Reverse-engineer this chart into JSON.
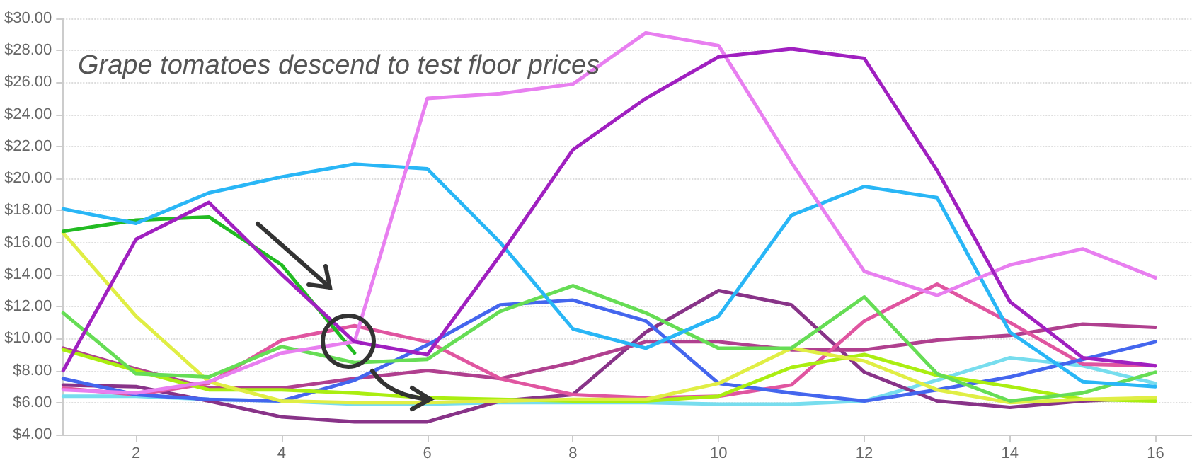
{
  "chart_data": {
    "type": "line",
    "x": [
      1,
      2,
      3,
      4,
      5,
      6,
      7,
      8,
      9,
      10,
      11,
      12,
      13,
      14,
      15,
      16
    ],
    "xlim": [
      1,
      16.5
    ],
    "xticks": [
      2,
      4,
      6,
      8,
      10,
      12,
      14,
      16
    ],
    "ylim": [
      4,
      30
    ],
    "yticks": [
      {
        "value": 4,
        "label": "$4.00"
      },
      {
        "value": 6,
        "label": "$6.00"
      },
      {
        "value": 8,
        "label": "$8.00"
      },
      {
        "value": 10,
        "label": "$10.00"
      },
      {
        "value": 12,
        "label": "$12.00"
      },
      {
        "value": 14,
        "label": "$14.00"
      },
      {
        "value": 16,
        "label": "$16.00"
      },
      {
        "value": 18,
        "label": "$18.00"
      },
      {
        "value": 20,
        "label": "$20.00"
      },
      {
        "value": 22,
        "label": "$22.00"
      },
      {
        "value": 24,
        "label": "$24.00"
      },
      {
        "value": 26,
        "label": "$26.00"
      },
      {
        "value": 28,
        "label": "$28.00"
      },
      {
        "value": 30,
        "label": "$30.00"
      }
    ],
    "grid": "y",
    "marker": "none",
    "line_style": "solid",
    "annotations": [
      "Grape tomatoes descend to test floor prices"
    ],
    "series": [
      {
        "color": "#77ddee",
        "values": [
          6.4,
          6.4,
          6.2,
          6.1,
          5.9,
          5.9,
          6.0,
          6.0,
          6.0,
          5.9,
          5.9,
          6.1,
          7.4,
          8.8,
          8.3,
          7.2
        ]
      },
      {
        "color": "#883388",
        "values": [
          7.1,
          7.0,
          6.1,
          5.1,
          4.8,
          4.8,
          6.1,
          6.5,
          10.4,
          13.0,
          12.1,
          7.9,
          6.1,
          5.7,
          6.1,
          6.3
        ]
      },
      {
        "color": "#b0408f",
        "values": [
          9.4,
          8.1,
          6.9,
          6.9,
          7.5,
          8.0,
          7.5,
          8.5,
          9.8,
          9.8,
          9.3,
          9.3,
          9.9,
          10.2,
          10.9,
          10.7
        ]
      },
      {
        "color": "#e055a0",
        "values": [
          6.9,
          6.5,
          7.2,
          9.9,
          10.8,
          9.8,
          7.5,
          6.5,
          6.3,
          6.4,
          7.1,
          11.1,
          13.4,
          11.0,
          8.4,
          8.3
        ]
      },
      {
        "color": "#4466ee",
        "values": [
          7.5,
          6.5,
          6.2,
          6.1,
          7.4,
          9.6,
          12.1,
          12.4,
          11.1,
          7.2,
          6.6,
          6.1,
          6.8,
          7.6,
          8.7,
          9.8
        ]
      },
      {
        "color": "#aaee11",
        "values": [
          9.3,
          8.0,
          6.8,
          6.8,
          6.6,
          6.3,
          6.2,
          6.1,
          6.1,
          6.4,
          8.2,
          9.0,
          7.7,
          7.0,
          6.2,
          6.1
        ]
      },
      {
        "color": "#e0ee44",
        "values": [
          16.6,
          11.4,
          7.3,
          6.1,
          6.0,
          6.0,
          6.1,
          6.2,
          6.2,
          7.2,
          9.4,
          8.6,
          6.8,
          6.0,
          6.2,
          6.3
        ]
      },
      {
        "color": "#66dd55",
        "values": [
          11.6,
          7.8,
          7.6,
          9.5,
          8.5,
          8.7,
          11.7,
          13.3,
          11.6,
          9.4,
          9.4,
          12.6,
          7.8,
          6.1,
          6.6,
          7.9
        ]
      },
      {
        "color": "#22bb22",
        "values": [
          16.7,
          17.4,
          17.6,
          14.6,
          9.1,
          null,
          null,
          null,
          null,
          null,
          null,
          null,
          null,
          null,
          null,
          null
        ]
      },
      {
        "color": "#29b6f6",
        "values": [
          18.1,
          17.2,
          19.1,
          20.1,
          20.9,
          20.6,
          16.0,
          10.6,
          9.4,
          11.4,
          17.7,
          19.5,
          18.8,
          10.4,
          7.3,
          7.0
        ]
      },
      {
        "color": "#e87ff0",
        "values": [
          6.8,
          6.6,
          7.3,
          9.1,
          9.8,
          25.0,
          25.3,
          25.9,
          29.1,
          28.3,
          21.0,
          14.2,
          12.7,
          14.6,
          15.6,
          13.8
        ]
      },
      {
        "color": "#a020c0",
        "values": [
          8.0,
          16.2,
          18.5,
          14.0,
          9.8,
          9.0,
          15.2,
          21.8,
          25.0,
          27.6,
          28.1,
          27.5,
          20.5,
          12.3,
          8.8,
          8.3
        ]
      }
    ]
  }
}
